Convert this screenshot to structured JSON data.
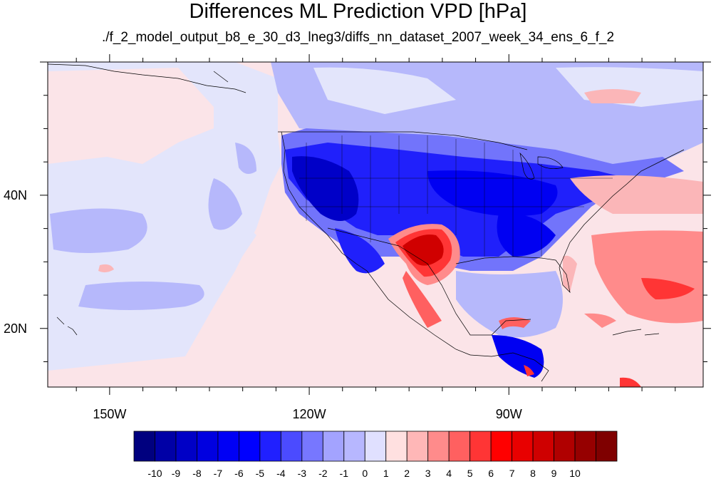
{
  "title": "Differences ML Prediction VPD [hPa]",
  "subtitle": "./f_2_model_output_b8_e_30_d3_lneg3/diffs_nn_dataset_2007_week_34_ens_6_f_2",
  "lat_labels": [
    {
      "value": 40,
      "text": "40N"
    },
    {
      "value": 20,
      "text": "20N"
    }
  ],
  "lon_labels": [
    {
      "value": -150,
      "text": "150W"
    },
    {
      "value": -120,
      "text": "120W"
    },
    {
      "value": -90,
      "text": "90W"
    }
  ],
  "map_extent": {
    "lon_min": -159.3,
    "lon_max": -60.8,
    "lat_min": 11.2,
    "lat_max": 60.0
  },
  "colorbar": {
    "colors": [
      "#00007f",
      "#0000a6",
      "#0000c6",
      "#0000e0",
      "#0000f5",
      "#0000ff",
      "#2020ff",
      "#4b4bff",
      "#7777ff",
      "#a3a3ff",
      "#b7b7ff",
      "#e0e0ff",
      "#ffe0e0",
      "#ffb7b7",
      "#ff8b8b",
      "#ff6060",
      "#ff3535",
      "#ff0000",
      "#e80000",
      "#cf0000",
      "#b00000",
      "#960000",
      "#7f0000"
    ],
    "labels": [
      "-10",
      "-9",
      "-8",
      "-7",
      "-6",
      "-5",
      "-4",
      "-3",
      "-2",
      "-1",
      "0",
      "1",
      "2",
      "3",
      "4",
      "5",
      "6",
      "7",
      "8",
      "9",
      "10"
    ]
  },
  "ocean_colors": {
    "pacific_west": "#fbe6ea",
    "pacific_band": "#e4e6fc"
  }
}
